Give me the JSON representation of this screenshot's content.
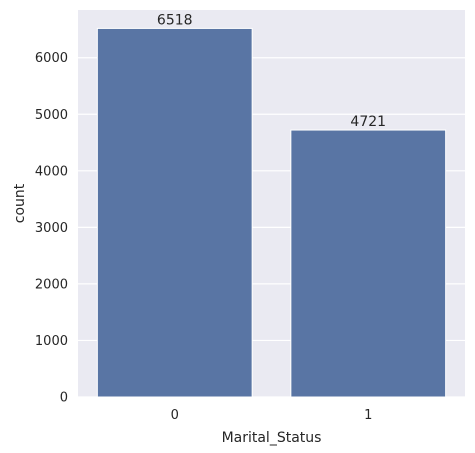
{
  "chart_data": {
    "type": "bar",
    "categories": [
      "0",
      "1"
    ],
    "values": [
      6518,
      4721
    ],
    "data_labels": [
      "6518",
      "4721"
    ],
    "title": "",
    "xlabel": "Marital_Status",
    "ylabel": "count",
    "ylim": [
      0,
      6843.9
    ],
    "yticks": [
      0,
      1000,
      2000,
      3000,
      4000,
      5000,
      6000
    ],
    "grid": true,
    "legend": "none",
    "colors": {
      "bar": "#5975a4",
      "plot_background": "#eaeaf2",
      "grid": "#ffffff",
      "text": "#262626"
    }
  }
}
